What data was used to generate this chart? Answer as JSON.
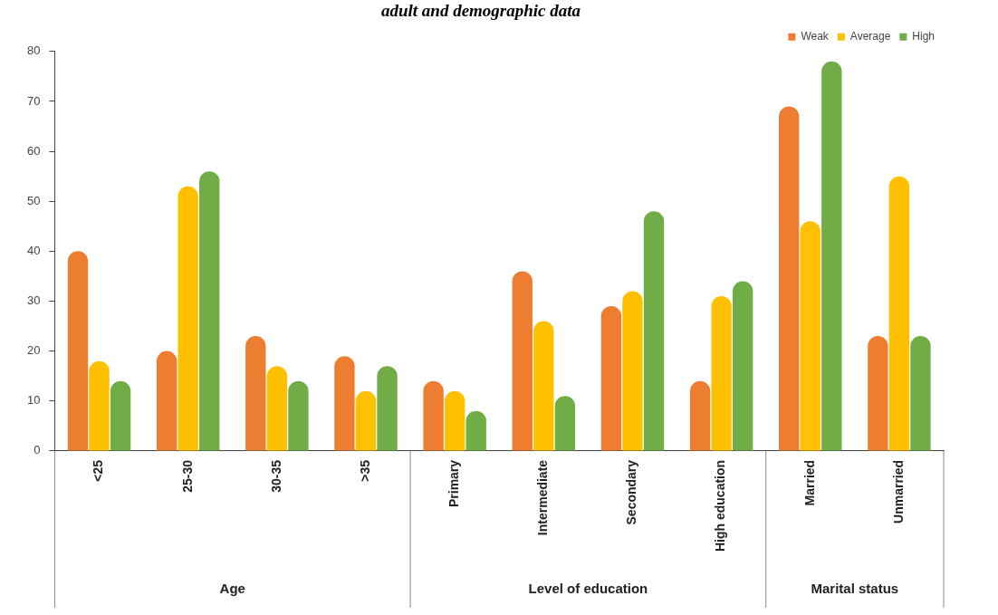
{
  "chart_data": {
    "type": "bar",
    "title": "adult and demographic data",
    "categories": [
      "<25",
      "25-30",
      "30-35",
      ">35",
      "Primary",
      "Intermediate",
      "Secondary",
      "High education",
      "Married",
      "Unmarried"
    ],
    "series": [
      {
        "name": "Weak",
        "color": "#ed7d31",
        "values": [
          40,
          20,
          23,
          19,
          14,
          36,
          29,
          14,
          69,
          23
        ]
      },
      {
        "name": "Average",
        "color": "#ffc000",
        "values": [
          18,
          53,
          17,
          12,
          12,
          26,
          32,
          31,
          46,
          55
        ]
      },
      {
        "name": "High",
        "color": "#70ad47",
        "values": [
          14,
          56,
          14,
          17,
          8,
          11,
          48,
          34,
          78,
          23
        ]
      }
    ],
    "ylim": [
      0,
      80
    ],
    "yticks": [
      0,
      10,
      20,
      30,
      40,
      50,
      60,
      70,
      80
    ],
    "grid": false,
    "legend": "top right",
    "annotations": [
      "Age",
      "Level of education",
      "Marital status"
    ]
  }
}
